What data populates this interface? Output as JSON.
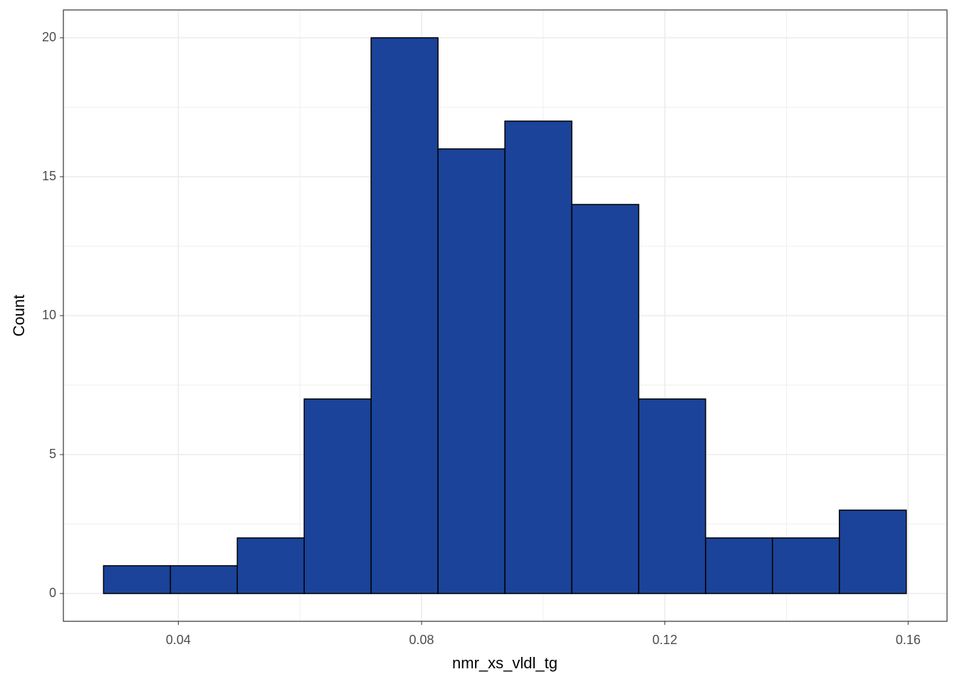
{
  "chart_data": {
    "type": "histogram",
    "x_label": "nmr_xs_vldl_tg",
    "y_label": "Count",
    "bins": [
      0.0277,
      0.0387,
      0.0497,
      0.0607,
      0.0717,
      0.0827,
      0.0937,
      0.1047,
      0.1157,
      0.1267,
      0.1377,
      0.1487,
      0.1597
    ],
    "values": [
      1,
      1,
      2,
      7,
      20,
      16,
      17,
      14,
      7,
      2,
      2,
      3
    ],
    "color": "#1a4399",
    "edge_color": "#000000",
    "xlim": [
      0.0211,
      0.1664
    ],
    "xticks": [
      0.04,
      0.08,
      0.12,
      0.16
    ],
    "ylim": [
      -1,
      21
    ],
    "yticks": [
      0,
      5,
      10,
      15,
      20
    ],
    "grid": true
  }
}
